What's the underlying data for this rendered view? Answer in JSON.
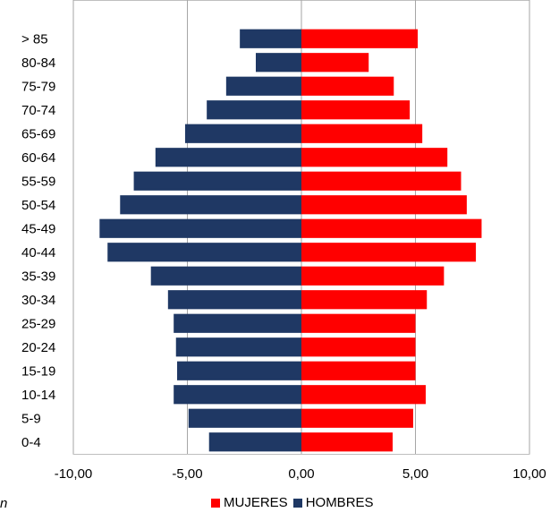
{
  "chart_data": {
    "type": "bar",
    "orientation": "horizontal",
    "stacked_pyramid": true,
    "categories": [
      "0-4",
      "5-9",
      "10-14",
      "15-19",
      "20-24",
      "25-29",
      "30-34",
      "35-39",
      "40-44",
      "45-49",
      "50-54",
      "55-59",
      "60-64",
      "65-69",
      "70-74",
      "75-79",
      "80-84",
      "> 85"
    ],
    "series": [
      {
        "name": "MUJERES",
        "color": "#ff0000",
        "values": [
          4.0,
          4.9,
          5.45,
          5.0,
          5.0,
          5.0,
          5.5,
          6.25,
          7.65,
          7.9,
          7.25,
          7.0,
          6.4,
          5.3,
          4.75,
          4.05,
          2.95,
          5.1
        ]
      },
      {
        "name": "HOMBRES",
        "color": "#1f3864",
        "values": [
          -4.05,
          -4.95,
          -5.6,
          -5.45,
          -5.5,
          -5.6,
          -5.85,
          -6.6,
          -8.5,
          -8.85,
          -7.95,
          -7.35,
          -6.4,
          -5.1,
          -4.15,
          -3.3,
          -2.0,
          -2.7
        ]
      }
    ],
    "xlim": [
      -10,
      10
    ],
    "x_ticks": [
      "-10,00",
      "-5,00",
      "0,00",
      "5,00",
      "10,00"
    ],
    "grid": "vertical",
    "legend": "bottom"
  },
  "stray_text": "n"
}
